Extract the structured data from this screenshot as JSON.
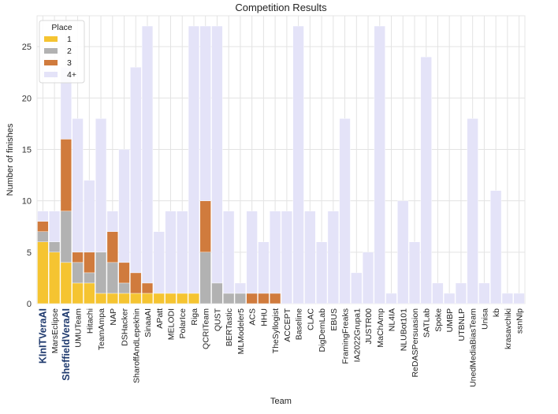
{
  "chart_data": {
    "type": "bar",
    "stacked": true,
    "title": "Competition Results",
    "xlabel": "Team",
    "ylabel": "Number of finishes",
    "ylim": [
      0,
      28
    ],
    "yticks": [
      0,
      5,
      10,
      15,
      20,
      25
    ],
    "grid": true,
    "legend": {
      "title": "Place",
      "position": "top-left"
    },
    "highlighted_categories": [
      "KInITVeraAI",
      "SheffieldVeraAI"
    ],
    "highlight_color": "#1f3a6e",
    "categories": [
      "KInITVeraAI",
      "MarsEclipse",
      "SheffieldVeraAI",
      "UMUTeam",
      "Hitachi",
      "TeamAmpa",
      "NAP",
      "DSHacker",
      "SharoffAndLepekhin",
      "SinaaAI",
      "APatt",
      "MELODI",
      "PolarIce",
      "Riga",
      "QCRITeam",
      "QUST",
      "BERTastic",
      "MLModeler5",
      "ACS",
      "HHU",
      "TheSyllogist",
      "ACCEPT",
      "Baseline",
      "CLAC",
      "DigDemLab",
      "EBUS",
      "FramingFreaks",
      "IA2022Grupa1",
      "JUSTR00",
      "MaChAmp",
      "NL4IA",
      "NLUBot101",
      "ReDASPersuasion",
      "SATLab",
      "Spoke",
      "UMBP",
      "UTBNLP",
      "UnedMediaBiasTeam",
      "Unisa",
      "kb",
      "krasavchiki",
      "ssnNlp"
    ],
    "series": [
      {
        "name": "1",
        "color": "#f5c431",
        "values": [
          6,
          5,
          4,
          2,
          2,
          1,
          1,
          1,
          1,
          1,
          1,
          1,
          1,
          1,
          0,
          0,
          0,
          0,
          0,
          0,
          0,
          0,
          0,
          0,
          0,
          0,
          0,
          0,
          0,
          0,
          0,
          0,
          0,
          0,
          0,
          0,
          0,
          0,
          0,
          0,
          0,
          0
        ]
      },
      {
        "name": "2",
        "color": "#b2b2b2",
        "values": [
          1,
          1,
          5,
          2,
          1,
          4,
          3,
          1,
          0,
          0,
          0,
          0,
          0,
          0,
          5,
          2,
          1,
          1,
          0,
          0,
          0,
          0,
          0,
          0,
          0,
          0,
          0,
          0,
          0,
          0,
          0,
          0,
          0,
          0,
          0,
          0,
          0,
          0,
          0,
          0,
          0,
          0
        ]
      },
      {
        "name": "3",
        "color": "#d07b3d",
        "values": [
          1,
          0,
          7,
          1,
          2,
          0,
          3,
          2,
          2,
          1,
          0,
          0,
          0,
          0,
          5,
          0,
          0,
          0,
          1,
          1,
          1,
          0,
          0,
          0,
          0,
          0,
          0,
          0,
          0,
          0,
          0,
          0,
          0,
          0,
          0,
          0,
          0,
          0,
          0,
          0,
          0,
          0
        ]
      },
      {
        "name": "4+",
        "color": "#e4e3f8",
        "values": [
          1,
          3,
          7,
          13,
          7,
          13,
          2,
          11,
          20,
          25,
          6,
          8,
          8,
          26,
          17,
          25,
          8,
          1,
          8,
          5,
          8,
          9,
          27,
          9,
          6,
          9,
          18,
          3,
          5,
          27,
          1,
          10,
          6,
          24,
          2,
          1,
          2,
          18,
          2,
          11,
          1,
          1
        ]
      }
    ]
  }
}
